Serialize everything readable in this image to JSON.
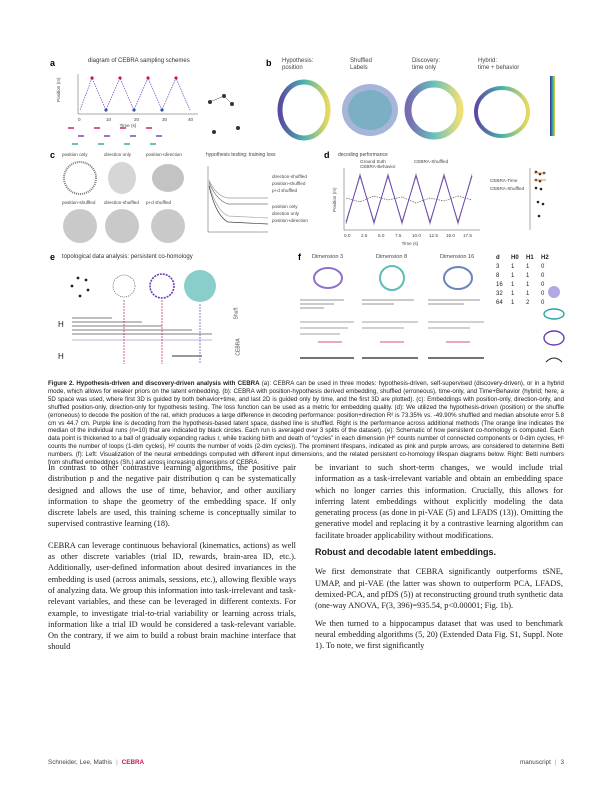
{
  "figure": {
    "panel_a": {
      "letter": "a",
      "title": "diagram of CEBRA sampling schemes",
      "xlabel": "Time (s)",
      "ylabel": "Position (m)",
      "ticks": [
        "0",
        "10",
        "20",
        "30",
        "40"
      ]
    },
    "panel_b": {
      "letter": "b",
      "labels": [
        "Hypothesis:\nposition",
        "Shuffled\nLabels",
        "Discovery:\ntime only",
        "Hybrid:\ntime + behavior"
      ]
    },
    "panel_c": {
      "letter": "c",
      "labels": [
        "position only",
        "direction only",
        "position+direction",
        "position-shuffled",
        "direction-shuffled",
        "p+d shuffled"
      ],
      "loss_title": "hypothesis testing: training loss",
      "legend": [
        "direction-shuffled",
        "position-shuffled",
        "p+d shuffled",
        "position only",
        "direction only",
        "position+direction"
      ]
    },
    "panel_d": {
      "letter": "d",
      "title": "decoding performance",
      "legend": [
        "Ground truth",
        "CEBRA-Behavior",
        "CEBRA-Shuffled"
      ],
      "xlabel": "Time (s)",
      "ylabel": "Position (m)",
      "ticks": [
        "0.0",
        "2.5",
        "5.0",
        "7.5",
        "10.0",
        "12.5",
        "15.0",
        "17.5"
      ],
      "bar_labels": [
        "CEBRA-Time",
        "CEBRA-Shuffled"
      ]
    },
    "panel_e": {
      "letter": "e",
      "title": "topological data analysis: persistent co-homology",
      "h1": "H",
      "h0": "H"
    },
    "panel_f": {
      "letter": "f",
      "dims": [
        "Dimension 3",
        "Dimension 8",
        "Dimension 16"
      ],
      "rows": [
        "Shuff.",
        "CEBRA"
      ]
    },
    "betti": {
      "header": [
        "d",
        "H0",
        "H1",
        "H2"
      ],
      "rows": [
        [
          "3",
          "1",
          "1",
          "0"
        ],
        [
          "8",
          "1",
          "1",
          "0"
        ],
        [
          "16",
          "1",
          "1",
          "0"
        ],
        [
          "32",
          "1",
          "1",
          "0"
        ],
        [
          "64",
          "1",
          "2",
          "0"
        ]
      ]
    }
  },
  "caption": {
    "label": "Figure 2.",
    "title": "Hypothesis-driven and discovery-driven analysis with CEBRA",
    "text": " (a): CEBRA can be used in three modes: hypothesis-driven, self-supervised (discovery-driven), or in a hybrid mode, which allows for weaker priors on the latent embedding. (b): CEBRA with position-hypothesis derived embedding, shuffled (erroneous), time-only, and Time+Behavior (hybrid; here, a 5D space was used, where first 3D is guided by both behavior+time, and last 2D is guided only by time, and the first 3D are plotted). (c): Embeddings with position-only, direction-only, and shuffled position-only, direction-only for hypothesis testing. The loss function can be used as a metric for embedding quality. (d): We utilized the hypothesis-driven (position) or the shuffle (erroneous) to decode the position of the rat, which produces a large difference in decoding performance: position+direction R² is 73.35% vs. -49.90% shuffled and median absolute error 5.8 cm vs 44.7 cm. Purple line is decoding from the hypothesis-based latent space, dashed line is shuffled. Right is the performance across additional methods (The orange line indicates the median of the individual runs (n=10) that are indicated by black circles. Each run is averaged over 3 splits of the dataset). (e): Schematic of how persistent co-homology is computed. Each data point is thickened to a ball of gradually expanding radius r, while tracking birth and death of “cycles” in each dimension (H⁰ counts number of connected components or 0-dim cycles, H¹ counts the number of loops (1-dim cycles), H² counts the number of voids (2-dim cycles)). The prominent lifespans, indicated as pink and purple arrows, are considered to determine Betti numbers. (f): Left: Visualization of the neural embeddings computed with different input dimensions, and the related persistent co-homology lifespan diagrams below. Right: Betti numbers from shuffled embeddings (Sh.) and across increasing dimensions of CEBRA."
  },
  "left_column": {
    "p1": "In contrast to other contrastive learning algorithms, the positive pair distribution p and the negative pair distribution q can be systematically designed and allows the use of time, behavior, and other auxiliary information to shape the geometry of the embedding space. If only discrete labels are used, this training scheme is conceptually similar to supervised contrastive learning (18).",
    "p2": "CEBRA can leverage continuous behavioral (kinematics, actions) as well as other discrete variables (trial ID, rewards, brain-area ID, etc.). Additionally, user-defined information about desired invariances in the embedding is used (across animals, sessions, etc.), allowing flexible ways of analyzing data. We group this information into task-irrelevant and task-relevant variables, and these can be leveraged in different contexts. For example, to investigate trial-to-trial variability or learning across trials, information like a trial ID would be considered a task-relevant variable. On the contrary, if we aim to build a robust brain machine interface that should"
  },
  "right_column": {
    "p1": "be invariant to such short-term changes, we would include trial information as a task-irrelevant variable and obtain an embedding space which no longer carries this information. Crucially, this allows for inferring latent embeddings without explicitly modeling the data generating process (as done in pi-VAE (5) and LFADS (13)). Omitting the generative model and replacing it by a contrastive learning algorithm can facilitate broader applicability without modifications.",
    "heading": "Robust and decodable latent embeddings.",
    "p2": "We first demonstrate that CEBRA significantly outperforms tSNE, UMAP, and pi-VAE (the latter was shown to outperform PCA, LFADS, demixed-PCA, and pfDS (5)) at reconstructing ground truth synthetic data (one-way ANOVA, F(3, 396)=935.54, p<0.00001; Fig. 1b).",
    "p3": "We then turned to a hippocampus dataset that was used to benchmark neural embedding algorithms (5, 20) (Extended Data Fig. S1, Suppl. Note 1). To note, we first significantly"
  },
  "footer": {
    "authors": "Schneider, Lee, Mathis",
    "brand": "CEBRA",
    "label": "manuscript",
    "page": "3"
  },
  "colors": {
    "accent": "#c2185b",
    "purple": "#6a3fb5",
    "teal": "#2aa6a0",
    "cite": "#2a55b0"
  }
}
